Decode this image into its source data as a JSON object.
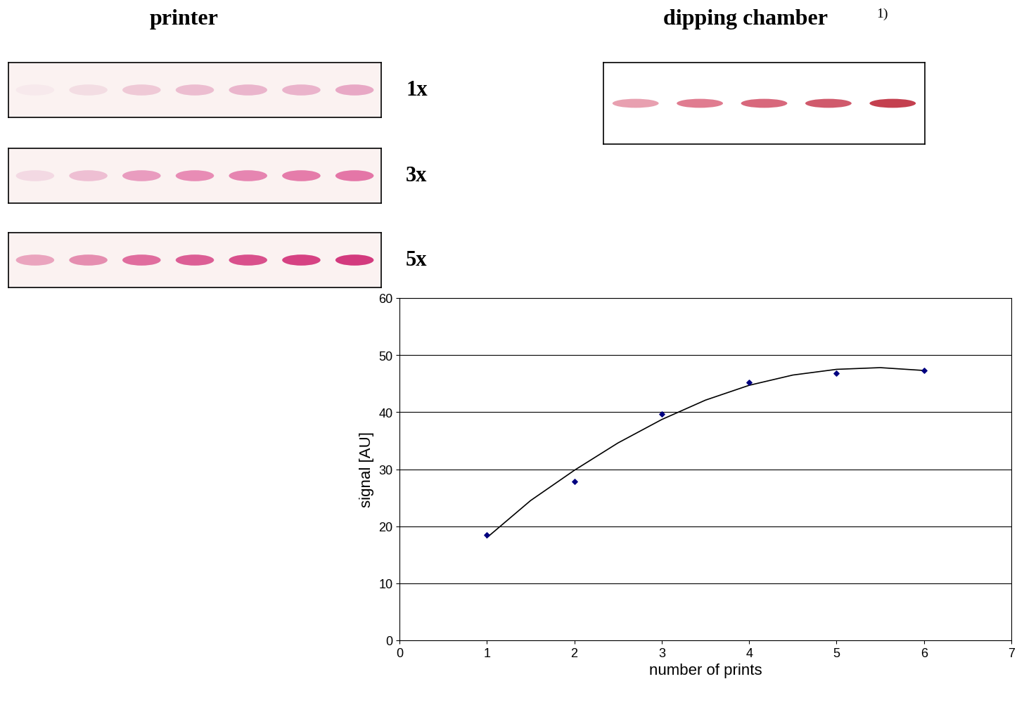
{
  "header": {
    "printer": "printer",
    "dipping_chamber": "dipping chamber",
    "footnote": "1)"
  },
  "plates": [
    {
      "label": "1x",
      "colors": [
        "#f7e9ec",
        "#f3dde3",
        "#efc9d6",
        "#ecbdd0",
        "#eab5cc",
        "#eab3cb",
        "#e8a8c5"
      ]
    },
    {
      "label": "3x",
      "colors": [
        "#f3d9e3",
        "#eebfd3",
        "#e99cbf",
        "#e88cb5",
        "#e685b1",
        "#e57caa",
        "#e476a7"
      ]
    },
    {
      "label": "5x",
      "colors": [
        "#eaa4be",
        "#e58eb0",
        "#e06d9e",
        "#dc5e95",
        "#d9508c",
        "#d64283",
        "#d33a7e"
      ]
    }
  ],
  "dipping_plate": {
    "colors": [
      "#e8a0b0",
      "#e07c90",
      "#d8687c",
      "#d05a6c",
      "#c4404f"
    ]
  },
  "chart_data": {
    "type": "scatter",
    "xlabel": "number of prints",
    "ylabel": "signal [AU]",
    "xlim": [
      0,
      7
    ],
    "ylim": [
      0,
      60
    ],
    "xticks": [
      0,
      1,
      2,
      3,
      4,
      5,
      6,
      7
    ],
    "yticks": [
      0,
      10,
      20,
      30,
      40,
      50,
      60
    ],
    "grid": "y",
    "series": [
      {
        "type": "scatter",
        "x": [
          1,
          2,
          3,
          4,
          5,
          6
        ],
        "values": [
          18.5,
          27.8,
          39.7,
          45.2,
          46.8,
          47.3
        ],
        "color": "#000080",
        "marker": "diamond"
      },
      {
        "type": "line",
        "x": [
          1,
          1.5,
          2,
          2.5,
          3,
          3.5,
          4,
          4.5,
          5,
          5.5,
          6
        ],
        "values": [
          18,
          24.5,
          29.8,
          34.6,
          38.7,
          42.1,
          44.7,
          46.5,
          47.5,
          47.8,
          47.3
        ],
        "color": "#000000",
        "line_style": "solid"
      }
    ]
  }
}
